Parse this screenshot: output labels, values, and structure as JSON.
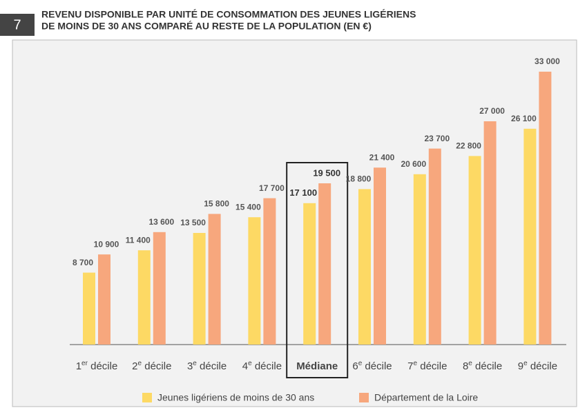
{
  "badge": "7",
  "chart_data": {
    "type": "bar",
    "title": [
      "REVENU DISPONIBLE PAR UNITÉ DE CONSOMMATION DES JEUNES LIGÉRIENS",
      "DE MOINS DE 30 ANS COMPARÉ AU RESTE DE LA POPULATION (EN €)"
    ],
    "categories": [
      [
        "1",
        "er",
        " décile"
      ],
      [
        "2",
        "e",
        " décile"
      ],
      [
        "3",
        "e",
        " décile"
      ],
      [
        "4",
        "e",
        " décile"
      ],
      [
        "Médiane"
      ],
      [
        "6",
        "e",
        " décile"
      ],
      [
        "7",
        "e",
        " décile"
      ],
      [
        "8",
        "e",
        " décile"
      ],
      [
        "9",
        "e",
        " décile"
      ]
    ],
    "series": [
      {
        "name": "Jeunes ligériens de moins de 30 ans",
        "color": "#fdd964",
        "values": [
          8700,
          11400,
          13500,
          15400,
          17100,
          18800,
          20600,
          22800,
          26100
        ],
        "value_labels": [
          "8 700",
          "11 400",
          "13 500",
          "15 400",
          "17 100",
          "18 800",
          "20 600",
          "22 800",
          "26 100"
        ]
      },
      {
        "name": "Département de la Loire",
        "color": "#f7a77d",
        "values": [
          10900,
          13600,
          15800,
          17700,
          19500,
          21400,
          23700,
          27000,
          33000
        ],
        "value_labels": [
          "10 900",
          "13 600",
          "15 800",
          "17 700",
          "19 500",
          "21 400",
          "23 700",
          "27 000",
          "33 000"
        ]
      }
    ],
    "ylim": [
      0,
      35000
    ],
    "highlight": 4
  }
}
